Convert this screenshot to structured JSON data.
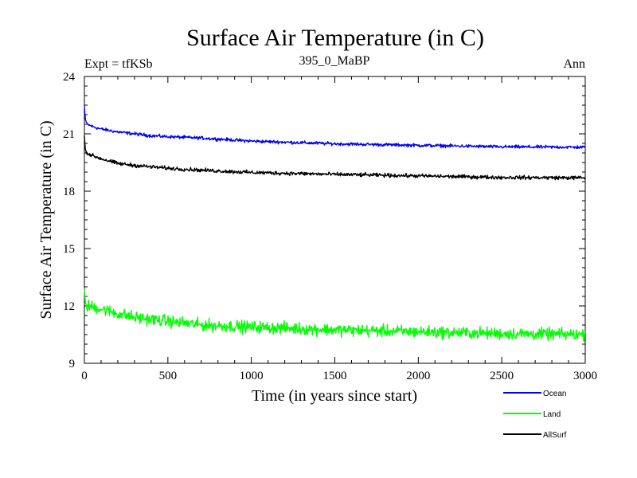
{
  "chart_data": {
    "type": "line",
    "title": "Surface Air Temperature (in C)",
    "subtitle_left": "Expt = tfKSb",
    "subtitle_center": "395_0_MaBP",
    "subtitle_right": "Ann",
    "xlabel": "Time (in years since start)",
    "ylabel": "Surface Air Temperature (in C)",
    "xlim": [
      0,
      3000
    ],
    "ylim": [
      9,
      24
    ],
    "xticks": [
      0,
      500,
      1000,
      1500,
      2000,
      2500,
      3000
    ],
    "yticks": [
      9,
      12,
      15,
      18,
      21,
      24
    ],
    "series": [
      {
        "name": "Ocean",
        "color": "#0000ff",
        "noise": 0.06,
        "x": [
          0,
          5,
          15,
          30,
          60,
          100,
          200,
          300,
          400,
          500,
          700,
          1000,
          1500,
          2000,
          2500,
          3000
        ],
        "y": [
          22.5,
          21.8,
          21.5,
          21.45,
          21.35,
          21.25,
          21.1,
          21.0,
          20.9,
          20.85,
          20.78,
          20.62,
          20.48,
          20.4,
          20.32,
          20.3
        ]
      },
      {
        "name": "Land",
        "color": "#00ff00",
        "noise": 0.22,
        "x": [
          0,
          5,
          15,
          50,
          100,
          200,
          300,
          500,
          700,
          1000,
          1500,
          2000,
          2500,
          3000
        ],
        "y": [
          12.9,
          12.2,
          12.0,
          11.95,
          11.85,
          11.6,
          11.4,
          11.2,
          11.0,
          10.9,
          10.75,
          10.65,
          10.55,
          10.5
        ]
      },
      {
        "name": "AllSurf",
        "color": "#000000",
        "noise": 0.07,
        "x": [
          0,
          5,
          15,
          50,
          100,
          200,
          300,
          500,
          700,
          1000,
          1500,
          2000,
          2500,
          3000
        ],
        "y": [
          20.9,
          20.2,
          20.0,
          19.85,
          19.7,
          19.45,
          19.35,
          19.2,
          19.1,
          18.98,
          18.88,
          18.8,
          18.72,
          18.7
        ]
      }
    ],
    "legend": [
      "Ocean",
      "Land",
      "AllSurf"
    ]
  }
}
